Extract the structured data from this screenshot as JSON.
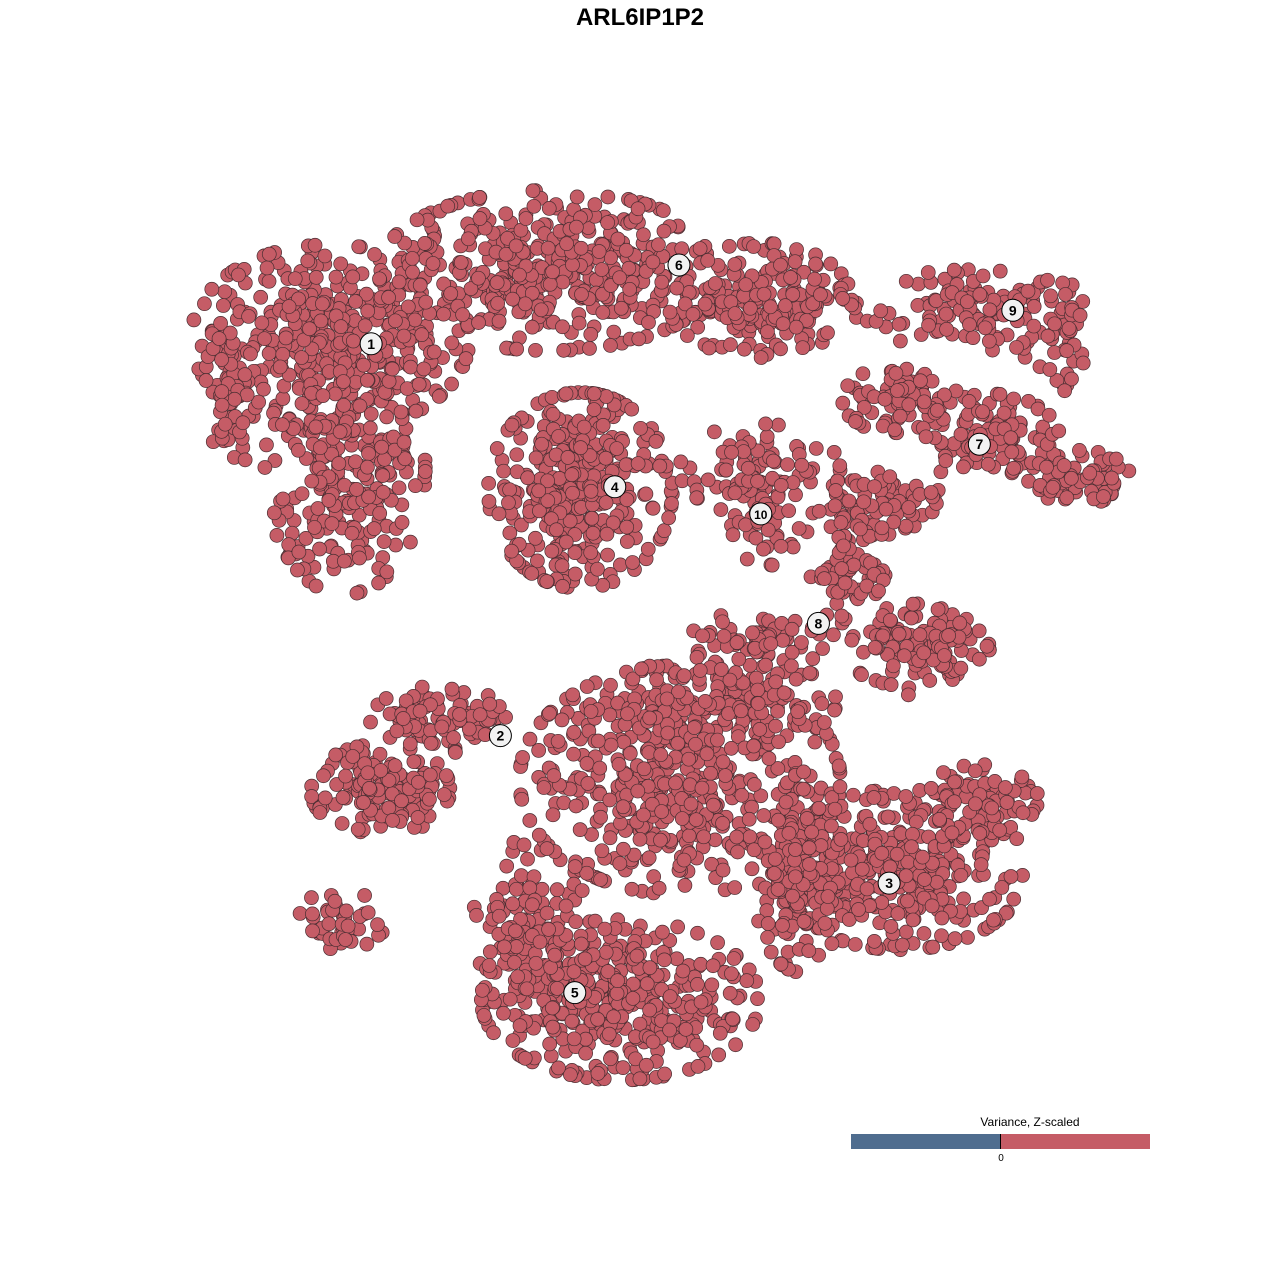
{
  "chart_data": {
    "type": "scatter",
    "title": "ARL6IP1P2",
    "xlabel": "",
    "ylabel": "",
    "axes_visible": false,
    "grid": false,
    "xlim": [
      -50,
      50
    ],
    "ylim": [
      -50,
      50
    ],
    "point_color": "#c55c66",
    "point_outline": "#4a2e32",
    "clusters": [
      {
        "label": "1",
        "center": [
          -31.6,
          32.4
        ],
        "blobs": [
          [
            -36,
            33,
            13,
            9,
            400
          ],
          [
            -34.4,
            18.5,
            7.5,
            12,
            250
          ],
          [
            -46.8,
            26,
            2.7,
            6.6,
            60
          ]
        ]
      },
      {
        "label": "2",
        "center": [
          -17.7,
          -10.9
        ],
        "blobs": [
          [
            -30.6,
            -16.9,
            6.5,
            4.4,
            150
          ],
          [
            -24.2,
            -9.2,
            6.5,
            3.3,
            100
          ],
          [
            -34.9,
            -31.3,
            4.3,
            2.8,
            40
          ]
        ]
      },
      {
        "label": "3",
        "center": [
          24.1,
          -27.2
        ],
        "blobs": [
          [
            25.3,
            -25.7,
            11.8,
            7.7,
            350
          ],
          [
            14.5,
            -26.9,
            4.3,
            8.8,
            150
          ],
          [
            33.9,
            -17.9,
            5.4,
            3.3,
            80
          ]
        ]
      },
      {
        "label": "4",
        "center": [
          -5.4,
          16.6
        ],
        "blobs": [
          [
            -9.1,
            16.2,
            8.6,
            9.4,
            350
          ]
        ]
      },
      {
        "label": "5",
        "center": [
          -9.7,
          -39.3
        ],
        "blobs": [
          [
            -4.8,
            -40.1,
            13,
            7.7,
            400
          ],
          [
            -14.5,
            -32.4,
            5.4,
            8.8,
            150
          ],
          [
            1.6,
            -15.8,
            15,
            11,
            500
          ],
          [
            6,
            -7.2,
            10.8,
            4.4,
            150
          ]
        ]
      },
      {
        "label": "6",
        "center": [
          1.5,
          41.1
        ],
        "blobs": [
          [
            -12.4,
            40.5,
            16,
            7.7,
            450
          ],
          [
            10.2,
            37.2,
            8.6,
            5.5,
            200
          ]
        ]
      },
      {
        "label": "7",
        "center": [
          33.8,
          21.3
        ],
        "blobs": [
          [
            25.3,
            26.2,
            5.4,
            3.3,
            80
          ],
          [
            35,
            21.8,
            6.5,
            4.4,
            120
          ],
          [
            44.6,
            17.4,
            4.8,
            2.8,
            70
          ]
        ]
      },
      {
        "label": "8",
        "center": [
          16.5,
          1.5
        ],
        "blobs": [
          [
            19.9,
            8.5,
            4.3,
            7.7,
            100
          ],
          [
            27.4,
            -1.4,
            6.5,
            4.4,
            120
          ],
          [
            10.2,
            -0.3,
            6.5,
            2.8,
            70
          ],
          [
            24.2,
            15.1,
            4.8,
            2.8,
            60
          ]
        ]
      },
      {
        "label": "9",
        "center": [
          37.4,
          36.1
        ],
        "blobs": [
          [
            32.8,
            36.1,
            10.8,
            3.9,
            120
          ],
          [
            42,
            33,
            3,
            6,
            40
          ]
        ]
      },
      {
        "label": "10",
        "center": [
          10.3,
          13.6
        ],
        "blobs": [
          [
            10.2,
            18.5,
            7.5,
            4.4,
            80
          ],
          [
            10.8,
            12.9,
            3.2,
            4.4,
            50
          ]
        ]
      }
    ],
    "legend": {
      "title": "Variance, Z-scaled",
      "tick_label": "0",
      "low_color": "#4f6d8f",
      "high_color": "#c55c66",
      "placement": "bottom-right"
    }
  }
}
